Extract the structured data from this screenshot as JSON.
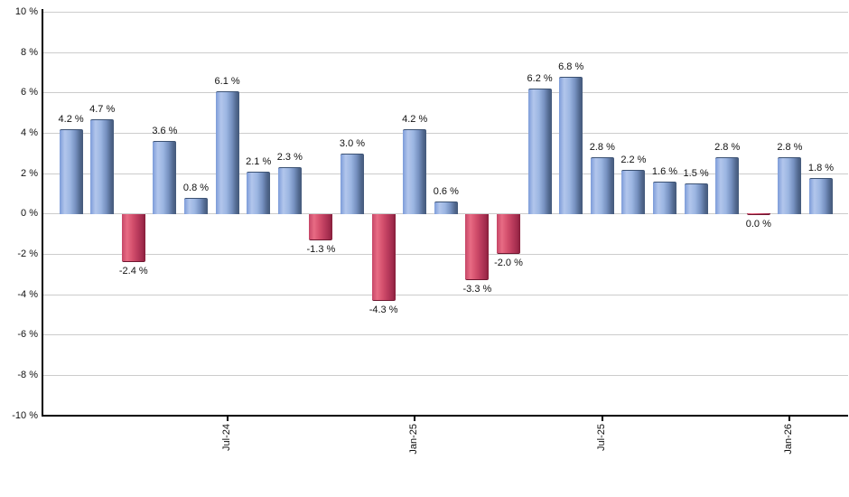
{
  "chart_data": {
    "type": "bar",
    "title": "",
    "xlabel": "",
    "ylabel": "",
    "unit": "%",
    "ylim": [
      -10,
      10
    ],
    "y_tick_step": 2,
    "grid": true,
    "legend": false,
    "y_ticks": [
      {
        "value": 10,
        "label": "10 %"
      },
      {
        "value": 8,
        "label": "8 %"
      },
      {
        "value": 6,
        "label": "6 %"
      },
      {
        "value": 4,
        "label": "4 %"
      },
      {
        "value": 2,
        "label": "2 %"
      },
      {
        "value": 0,
        "label": "0 %"
      },
      {
        "value": -2,
        "label": "-2 %"
      },
      {
        "value": -4,
        "label": "-4 %"
      },
      {
        "value": -6,
        "label": "-6 %"
      },
      {
        "value": -8,
        "label": "-8 %"
      },
      {
        "value": -10,
        "label": "-10 %"
      }
    ],
    "x_ticks": [
      {
        "bar_index": 5,
        "label": "Jul-24"
      },
      {
        "bar_index": 11,
        "label": "Jan-25"
      },
      {
        "bar_index": 17,
        "label": "Jul-25"
      },
      {
        "bar_index": 23,
        "label": "Jan-26"
      }
    ],
    "bars": [
      {
        "value": 4.2,
        "label": "4.2 %",
        "color": "blue"
      },
      {
        "value": 4.7,
        "label": "4.7 %",
        "color": "blue"
      },
      {
        "value": -2.4,
        "label": "-2.4 %",
        "color": "red"
      },
      {
        "value": 3.6,
        "label": "3.6 %",
        "color": "blue"
      },
      {
        "value": 0.8,
        "label": "0.8 %",
        "color": "blue"
      },
      {
        "value": 6.1,
        "label": "6.1 %",
        "color": "blue"
      },
      {
        "value": 2.1,
        "label": "2.1 %",
        "color": "blue"
      },
      {
        "value": 2.3,
        "label": "2.3 %",
        "color": "blue"
      },
      {
        "value": -1.3,
        "label": "-1.3 %",
        "color": "red"
      },
      {
        "value": 3.0,
        "label": "3.0 %",
        "color": "blue"
      },
      {
        "value": -4.3,
        "label": "-4.3 %",
        "color": "red"
      },
      {
        "value": 4.2,
        "label": "4.2 %",
        "color": "blue"
      },
      {
        "value": 0.6,
        "label": "0.6 %",
        "color": "blue"
      },
      {
        "value": -3.3,
        "label": "-3.3 %",
        "color": "red"
      },
      {
        "value": -2.0,
        "label": "-2.0 %",
        "color": "red"
      },
      {
        "value": 6.2,
        "label": "6.2 %",
        "color": "blue"
      },
      {
        "value": 6.8,
        "label": "6.8 %",
        "color": "blue"
      },
      {
        "value": 2.8,
        "label": "2.8 %",
        "color": "blue"
      },
      {
        "value": 2.2,
        "label": "2.2 %",
        "color": "blue"
      },
      {
        "value": 1.6,
        "label": "1.6 %",
        "color": "blue"
      },
      {
        "value": 1.5,
        "label": "1.5 %",
        "color": "blue"
      },
      {
        "value": 2.8,
        "label": "2.8 %",
        "color": "blue"
      },
      {
        "value": 0.0,
        "label": "0.0 %",
        "color": "red"
      },
      {
        "value": 2.8,
        "label": "2.8 %",
        "color": "blue"
      },
      {
        "value": 1.8,
        "label": "1.8 %",
        "color": "blue"
      }
    ],
    "colors": {
      "blue_gradient": [
        "#7d9cd9",
        "#b2c6ec",
        "#9cb6e2",
        "#7691c0",
        "#50678d",
        "#44597a"
      ],
      "red_gradient": [
        "#c64767",
        "#e86b84",
        "#d4506d",
        "#b93a5c",
        "#a02b4c",
        "#851d39"
      ],
      "blue_cap": "#3c5273",
      "red_cap": "#6f1730",
      "gridline": "#cccccc",
      "axis": "#000000",
      "text": "#111111",
      "background": "#ffffff"
    }
  }
}
